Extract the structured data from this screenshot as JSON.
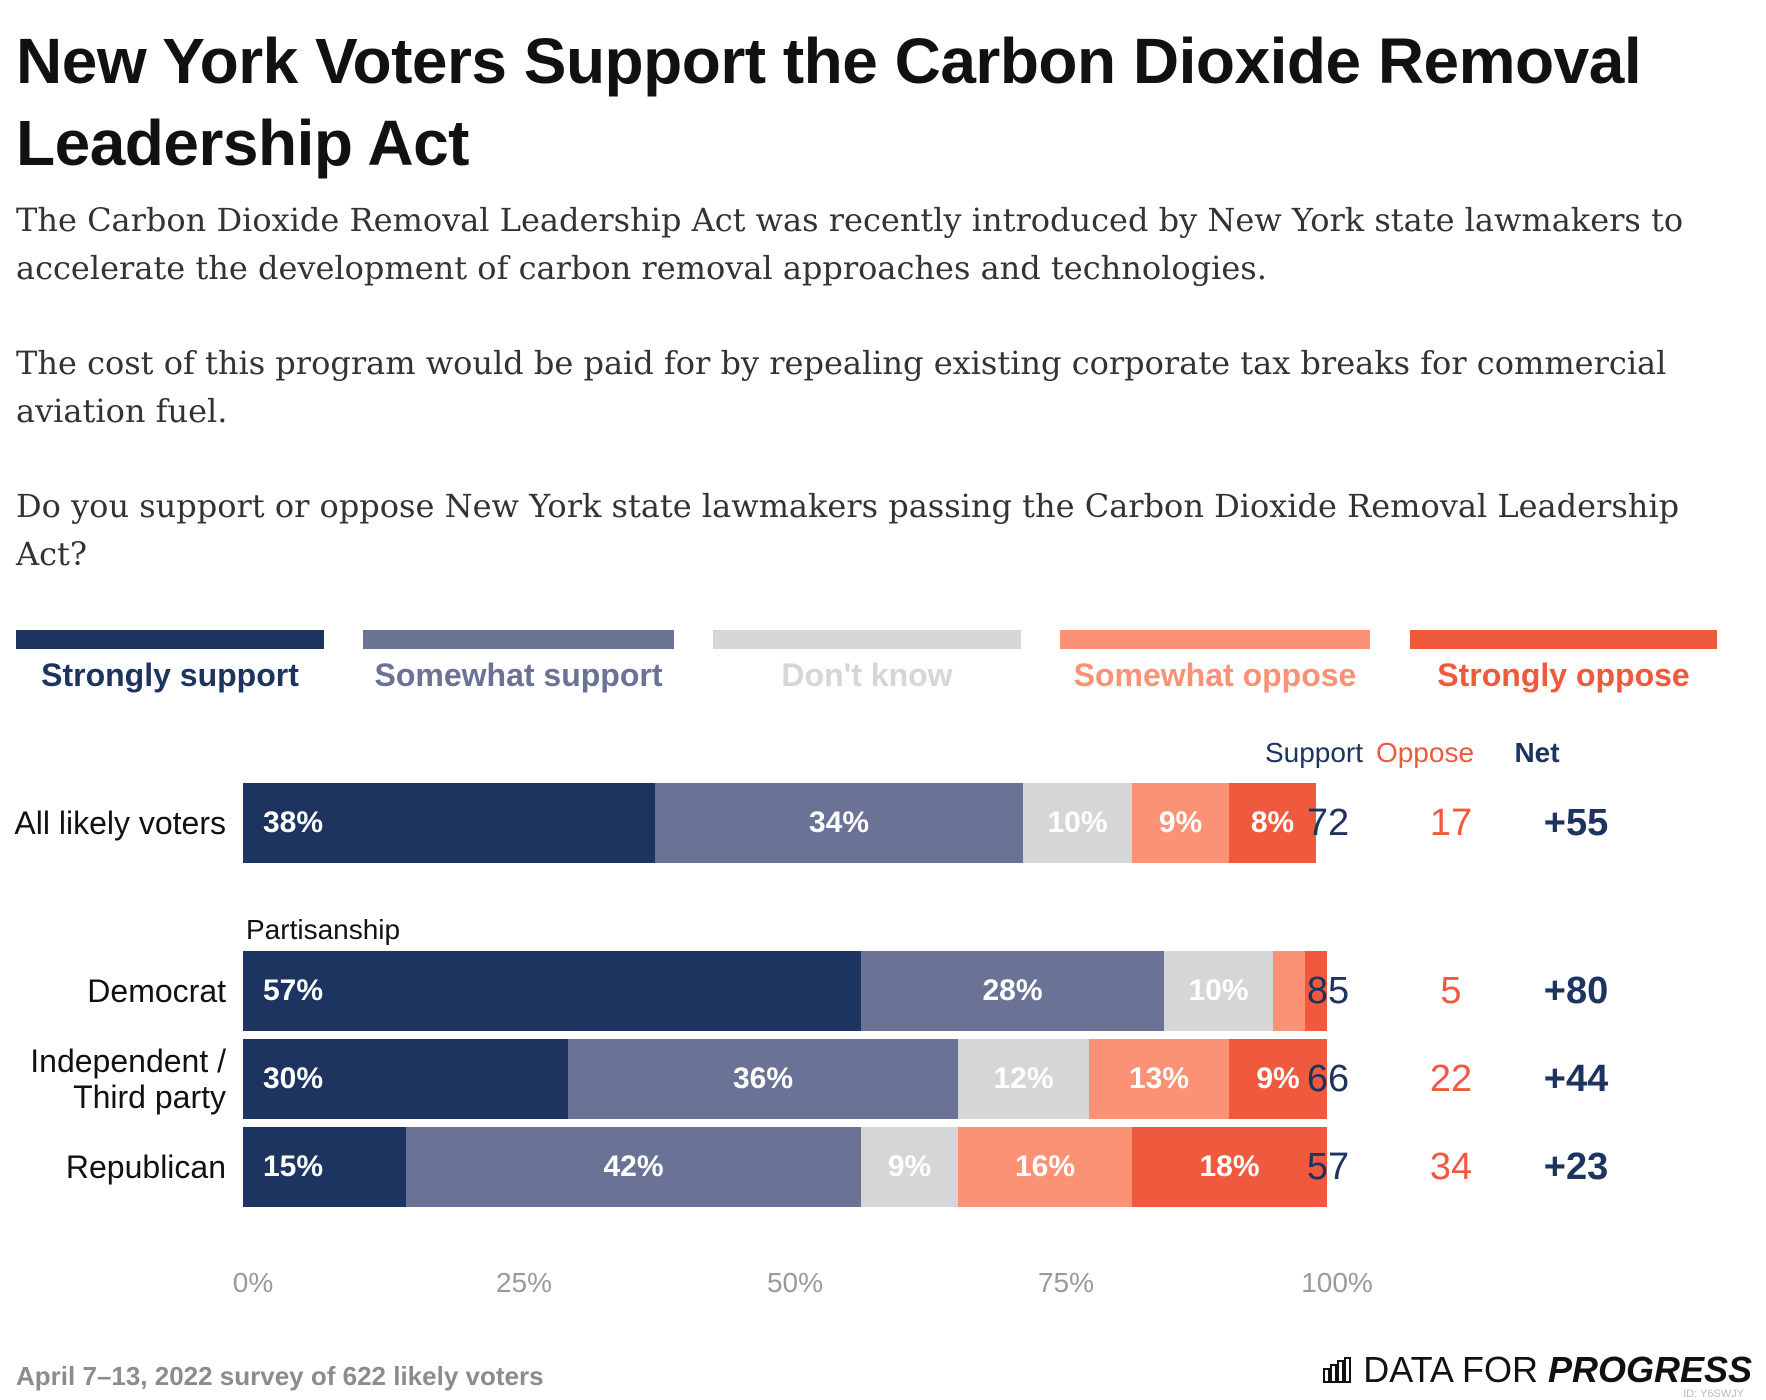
{
  "title": "New York Voters Support the Carbon Dioxide Removal Leadership Act",
  "description": [
    "The Carbon Dioxide Removal Leadership Act was recently introduced by New York state lawmakers to accelerate the development of carbon removal approaches and technologies.",
    "The cost of this program would be paid for by repealing existing corporate tax breaks for commercial aviation fuel.",
    "Do you support or oppose New York state lawmakers passing the Carbon Dioxide Removal Leadership Act?"
  ],
  "columns": {
    "support": "Support",
    "oppose": "Oppose",
    "net": "Net"
  },
  "group_label": "Partisanship",
  "footnote": "April 7–13, 2022 survey of 622 likely voters",
  "brand": {
    "light": "DATA FOR",
    "bold": "PROGRESS"
  },
  "chart_id": "ID: Y6SWJY",
  "chart_data": {
    "type": "bar",
    "orientation": "horizontal",
    "stacked": true,
    "title": "New York Voters Support the Carbon Dioxide Removal Leadership Act",
    "categories": [
      "All likely voters",
      "Democrat",
      "Independent / Third party",
      "Republican"
    ],
    "series": [
      {
        "name": "Strongly support",
        "color": "#1d3461",
        "label_color": "#ffffff",
        "values": [
          38,
          57,
          30,
          15
        ]
      },
      {
        "name": "Somewhat support",
        "color": "#6a7395",
        "label_color": "#ffffff",
        "values": [
          34,
          28,
          36,
          42
        ]
      },
      {
        "name": "Don't know",
        "color": "#d6d6d8",
        "label_color": "#ffffff",
        "values": [
          10,
          10,
          12,
          9
        ]
      },
      {
        "name": "Somewhat oppose",
        "color": "#fb9276",
        "label_color": "#ffffff",
        "values": [
          9,
          3,
          13,
          16
        ]
      },
      {
        "name": "Strongly oppose",
        "color": "#ef5a3f",
        "label_color": "#ffffff",
        "values": [
          8,
          2,
          9,
          18
        ]
      }
    ],
    "data_labels": [
      [
        "38%",
        "34%",
        "10%",
        "9%",
        "8%"
      ],
      [
        "57%",
        "28%",
        "10%",
        "",
        ""
      ],
      [
        "30%",
        "36%",
        "12%",
        "13%",
        "9%"
      ],
      [
        "15%",
        "42%",
        "9%",
        "16%",
        "18%"
      ]
    ],
    "support": [
      72,
      85,
      66,
      57
    ],
    "oppose": [
      17,
      5,
      22,
      34
    ],
    "net": [
      "+55",
      "+80",
      "+44",
      "+23"
    ],
    "x_ticks": [
      "0%",
      "25%",
      "50%",
      "75%",
      "100%"
    ],
    "xlim": [
      0,
      100
    ],
    "legend": "top"
  }
}
